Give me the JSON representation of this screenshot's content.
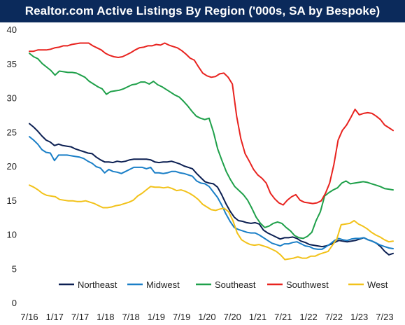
{
  "chart_data": {
    "type": "line",
    "title": "Realtor.com Active Listings By Region ('000s, SA by Bespoke)",
    "xlabel": "",
    "ylabel": "",
    "ylim": [
      0,
      40
    ],
    "yticks": [
      "0",
      "5",
      "10",
      "15",
      "20",
      "25",
      "30",
      "35",
      "40"
    ],
    "xticks": [
      "7/16",
      "1/17",
      "7/17",
      "1/18",
      "7/18",
      "1/19",
      "7/19",
      "1/20",
      "7/20",
      "1/21",
      "7/21",
      "1/22",
      "7/22",
      "1/23",
      "7/23"
    ],
    "x_start": "7/16",
    "x_end": "9/23",
    "grid": false,
    "legend_position": "bottom",
    "series": [
      {
        "name": "Northeast",
        "color": "#0b1f52",
        "values": [
          26.2,
          25.7,
          25.1,
          24.4,
          23.8,
          23.5,
          23.0,
          23.2,
          23.0,
          22.9,
          22.8,
          22.5,
          22.3,
          22.1,
          21.9,
          21.8,
          21.3,
          20.9,
          20.6,
          20.6,
          20.5,
          20.7,
          20.6,
          20.7,
          20.9,
          21.0,
          21.0,
          21.0,
          21.0,
          20.9,
          20.6,
          20.5,
          20.6,
          20.6,
          20.7,
          20.5,
          20.3,
          20.0,
          19.8,
          19.6,
          18.9,
          18.3,
          17.7,
          17.5,
          17.4,
          16.9,
          15.8,
          14.5,
          13.4,
          12.5,
          12.0,
          11.9,
          11.7,
          11.6,
          11.7,
          11.5,
          10.6,
          10.2,
          9.9,
          9.6,
          9.3,
          9.5,
          9.5,
          9.6,
          9.4,
          9.0,
          8.8,
          8.5,
          8.4,
          8.3,
          8.2,
          8.3,
          8.5,
          8.8,
          9.1,
          9.0,
          8.9,
          9.0,
          9.1,
          9.3,
          9.5,
          9.2,
          9.0,
          8.7,
          8.2,
          7.5,
          7.0,
          7.2
        ]
      },
      {
        "name": "Midwest",
        "color": "#1a7fc7",
        "values": [
          24.3,
          23.8,
          23.2,
          22.4,
          22.0,
          21.9,
          20.8,
          21.6,
          21.6,
          21.6,
          21.5,
          21.4,
          21.3,
          21.1,
          20.7,
          20.4,
          19.9,
          19.7,
          19.0,
          19.5,
          19.2,
          19.1,
          18.9,
          19.2,
          19.5,
          19.8,
          19.8,
          19.8,
          19.6,
          19.8,
          19.0,
          19.0,
          18.9,
          19.0,
          19.2,
          19.2,
          19.0,
          18.9,
          18.7,
          18.5,
          17.8,
          17.5,
          17.4,
          17.0,
          16.2,
          15.4,
          14.3,
          13.0,
          11.9,
          11.0,
          10.7,
          10.5,
          10.3,
          10.2,
          10.2,
          9.9,
          9.5,
          9.1,
          8.7,
          8.5,
          8.3,
          8.6,
          8.6,
          8.8,
          8.9,
          8.6,
          8.3,
          8.2,
          7.9,
          7.8,
          7.8,
          8.2,
          8.6,
          9.1,
          9.4,
          9.2,
          9.1,
          9.3,
          9.4,
          9.4,
          9.5,
          9.2,
          9.0,
          8.7,
          8.4,
          8.2,
          8.0,
          7.9
        ]
      },
      {
        "name": "Southeast",
        "color": "#1fa04a",
        "values": [
          36.5,
          36.0,
          35.7,
          35.0,
          34.5,
          34.0,
          33.3,
          33.9,
          33.8,
          33.7,
          33.7,
          33.6,
          33.3,
          33.0,
          32.4,
          32.0,
          31.6,
          31.3,
          30.5,
          30.9,
          31.0,
          31.1,
          31.3,
          31.6,
          31.9,
          32.0,
          32.3,
          32.3,
          32.0,
          32.4,
          31.9,
          31.6,
          31.2,
          30.8,
          30.4,
          30.1,
          29.5,
          28.8,
          28.0,
          27.3,
          27.0,
          26.8,
          27.0,
          25.0,
          22.5,
          20.8,
          19.2,
          18.0,
          17.0,
          16.4,
          15.8,
          15.0,
          13.8,
          12.5,
          11.6,
          11.0,
          11.2,
          11.6,
          11.8,
          11.6,
          11.0,
          10.5,
          9.8,
          9.5,
          9.4,
          9.7,
          10.3,
          12.0,
          13.3,
          15.6,
          16.1,
          16.5,
          16.8,
          17.5,
          17.8,
          17.4,
          17.5,
          17.6,
          17.7,
          17.6,
          17.4,
          17.2,
          17.0,
          16.7,
          16.6,
          16.5
        ]
      },
      {
        "name": "Southwest",
        "color": "#e8231f",
        "values": [
          36.8,
          36.8,
          37.0,
          37.0,
          37.0,
          37.1,
          37.3,
          37.4,
          37.6,
          37.6,
          37.8,
          37.9,
          38.0,
          38.0,
          38.0,
          37.6,
          37.3,
          37.0,
          36.5,
          36.2,
          36.0,
          35.9,
          36.0,
          36.3,
          36.6,
          37.0,
          37.3,
          37.4,
          37.6,
          37.6,
          37.8,
          37.7,
          38.0,
          37.7,
          37.5,
          37.3,
          36.9,
          36.4,
          35.8,
          35.5,
          34.5,
          33.6,
          33.2,
          33.0,
          33.1,
          33.5,
          33.6,
          33.0,
          32.0,
          27.3,
          24.0,
          21.8,
          20.7,
          19.5,
          18.7,
          18.2,
          17.5,
          16.0,
          15.2,
          14.6,
          14.3,
          15.0,
          15.5,
          15.8,
          15.0,
          14.7,
          14.6,
          14.5,
          14.6,
          14.9,
          16.0,
          17.5,
          20.2,
          23.8,
          25.2,
          26.0,
          27.1,
          28.3,
          27.5,
          27.7,
          27.8,
          27.7,
          27.3,
          26.8,
          26.0,
          25.6,
          25.2
        ]
      },
      {
        "name": "West",
        "color": "#f2c21a",
        "values": [
          17.2,
          16.9,
          16.5,
          16.0,
          15.7,
          15.6,
          15.5,
          15.1,
          15.0,
          14.9,
          14.9,
          14.8,
          14.8,
          14.9,
          14.7,
          14.5,
          14.2,
          13.9,
          13.9,
          14.0,
          14.2,
          14.3,
          14.5,
          14.7,
          15.0,
          15.6,
          16.0,
          16.5,
          17.0,
          16.9,
          16.9,
          16.8,
          16.9,
          16.7,
          16.4,
          16.5,
          16.3,
          16.0,
          15.6,
          15.1,
          14.4,
          14.0,
          13.6,
          13.5,
          13.7,
          13.8,
          13.3,
          12.0,
          10.2,
          9.2,
          8.8,
          8.5,
          8.4,
          8.5,
          8.3,
          8.1,
          7.8,
          7.5,
          7.0,
          6.3,
          6.4,
          6.5,
          6.7,
          6.5,
          6.5,
          6.8,
          6.8,
          7.1,
          7.3,
          7.5,
          8.4,
          9.3,
          11.4,
          11.5,
          11.6,
          12.0,
          11.5,
          11.2,
          10.8,
          10.3,
          9.9,
          9.6,
          9.2,
          8.9,
          9.0
        ]
      }
    ]
  }
}
